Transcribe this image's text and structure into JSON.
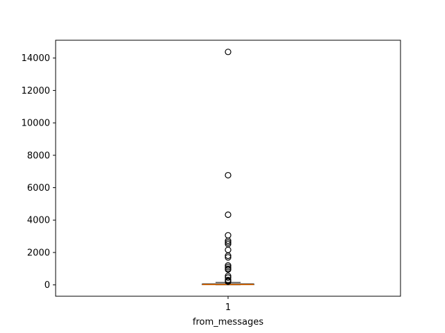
{
  "chart_data": {
    "type": "box",
    "title": "",
    "xlabel": "from_messages",
    "ylabel": "",
    "categories": [
      "1"
    ],
    "ylim": [
      -700,
      15100
    ],
    "yticks": [
      0,
      2000,
      4000,
      6000,
      8000,
      10000,
      12000,
      14000
    ],
    "ytick_labels": [
      "0",
      "2000",
      "4000",
      "6000",
      "8000",
      "10000",
      "12000",
      "14000"
    ],
    "boxes": [
      {
        "category": "1",
        "whisker_low": 0,
        "q1": 5,
        "median": 25,
        "q3": 65,
        "whisker_high": 150,
        "outliers": [
          14380,
          6770,
          4330,
          3060,
          2720,
          2620,
          2520,
          2160,
          1800,
          1700,
          1200,
          1100,
          1000,
          950,
          550,
          450,
          300,
          250,
          200
        ]
      }
    ],
    "colors": {
      "box": "#000000",
      "median": "#ff7f0e",
      "outlier": "#000000"
    }
  }
}
